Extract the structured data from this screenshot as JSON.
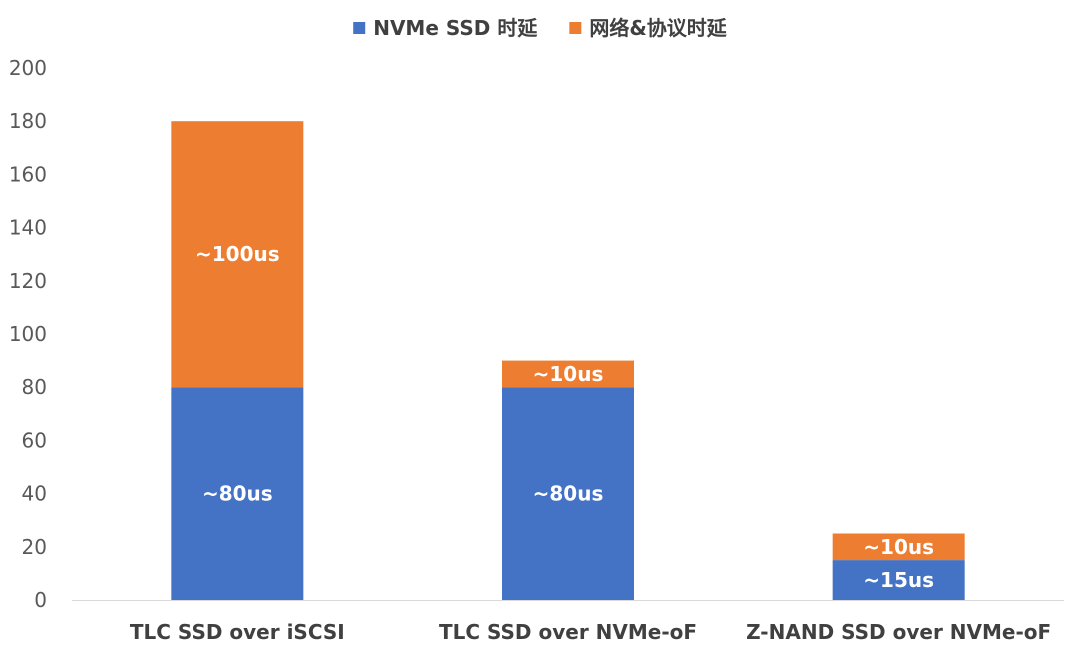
{
  "chart_data": {
    "type": "bar",
    "stacked": true,
    "title": "",
    "xlabel": "",
    "ylabel": "",
    "ylim": [
      0,
      200
    ],
    "yticks": [
      0,
      20,
      40,
      60,
      80,
      100,
      120,
      140,
      160,
      180,
      200
    ],
    "grid": false,
    "legend_position": "top",
    "categories": [
      "TLC SSD over iSCSI",
      "TLC SSD over NVMe-oF",
      "Z-NAND SSD over NVMe-oF"
    ],
    "series": [
      {
        "name": "NVMe SSD 时延",
        "color": "#4472C4",
        "values": [
          80,
          80,
          15
        ],
        "labels": [
          "~80us",
          "~80us",
          "~15us"
        ]
      },
      {
        "name": "网络&协议时延",
        "color": "#ED7D31",
        "values": [
          100,
          10,
          10
        ],
        "labels": [
          "~100us",
          "~10us",
          "~10us"
        ]
      }
    ]
  }
}
